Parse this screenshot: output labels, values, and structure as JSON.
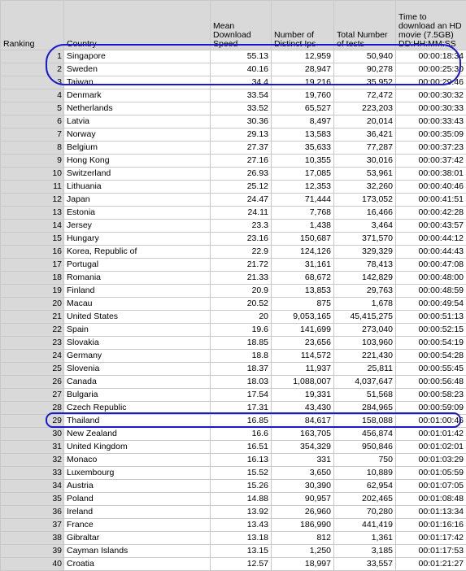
{
  "headers": {
    "ranking": "Ranking",
    "country": "Country",
    "speed": "Mean Download Speed",
    "ips": "Number of Distinct Ips",
    "tests": "Total Number of tests",
    "time": "Time to download an HD movie (7.5GB) DD:HH:MM:SS"
  },
  "rows": [
    {
      "rank": "1",
      "country": "Singapore",
      "speed": "55.13",
      "ips": "12,959",
      "tests": "50,940",
      "time": "00:00:18:34"
    },
    {
      "rank": "2",
      "country": "Sweden",
      "speed": "40.16",
      "ips": "28,947",
      "tests": "90,278",
      "time": "00:00:25:30"
    },
    {
      "rank": "3",
      "country": "Taiwan",
      "speed": "34.4",
      "ips": "19,216",
      "tests": "35,952",
      "time": "00:00:29:46"
    },
    {
      "rank": "4",
      "country": "Denmark",
      "speed": "33.54",
      "ips": "19,760",
      "tests": "72,472",
      "time": "00:00:30:32"
    },
    {
      "rank": "5",
      "country": "Netherlands",
      "speed": "33.52",
      "ips": "65,527",
      "tests": "223,203",
      "time": "00:00:30:33"
    },
    {
      "rank": "6",
      "country": "Latvia",
      "speed": "30.36",
      "ips": "8,497",
      "tests": "20,014",
      "time": "00:00:33:43"
    },
    {
      "rank": "7",
      "country": "Norway",
      "speed": "29.13",
      "ips": "13,583",
      "tests": "36,421",
      "time": "00:00:35:09"
    },
    {
      "rank": "8",
      "country": "Belgium",
      "speed": "27.37",
      "ips": "35,633",
      "tests": "77,287",
      "time": "00:00:37:23"
    },
    {
      "rank": "9",
      "country": "Hong Kong",
      "speed": "27.16",
      "ips": "10,355",
      "tests": "30,016",
      "time": "00:00:37:42"
    },
    {
      "rank": "10",
      "country": "Switzerland",
      "speed": "26.93",
      "ips": "17,085",
      "tests": "53,961",
      "time": "00:00:38:01"
    },
    {
      "rank": "11",
      "country": "Lithuania",
      "speed": "25.12",
      "ips": "12,353",
      "tests": "32,260",
      "time": "00:00:40:46"
    },
    {
      "rank": "12",
      "country": "Japan",
      "speed": "24.47",
      "ips": "71,444",
      "tests": "173,052",
      "time": "00:00:41:51"
    },
    {
      "rank": "13",
      "country": "Estonia",
      "speed": "24.11",
      "ips": "7,768",
      "tests": "16,466",
      "time": "00:00:42:28"
    },
    {
      "rank": "14",
      "country": "Jersey",
      "speed": "23.3",
      "ips": "1,438",
      "tests": "3,464",
      "time": "00:00:43:57"
    },
    {
      "rank": "15",
      "country": "Hungary",
      "speed": "23.16",
      "ips": "150,687",
      "tests": "371,570",
      "time": "00:00:44:12"
    },
    {
      "rank": "16",
      "country": "Korea, Republic of",
      "speed": "22.9",
      "ips": "124,126",
      "tests": "329,329",
      "time": "00:00:44:43"
    },
    {
      "rank": "17",
      "country": "Portugal",
      "speed": "21.72",
      "ips": "31,161",
      "tests": "78,413",
      "time": "00:00:47:08"
    },
    {
      "rank": "18",
      "country": "Romania",
      "speed": "21.33",
      "ips": "68,672",
      "tests": "142,829",
      "time": "00:00:48:00"
    },
    {
      "rank": "19",
      "country": "Finland",
      "speed": "20.9",
      "ips": "13,853",
      "tests": "29,763",
      "time": "00:00:48:59"
    },
    {
      "rank": "20",
      "country": "Macau",
      "speed": "20.52",
      "ips": "875",
      "tests": "1,678",
      "time": "00:00:49:54"
    },
    {
      "rank": "21",
      "country": "United States",
      "speed": "20",
      "ips": "9,053,165",
      "tests": "45,415,275",
      "time": "00:00:51:13"
    },
    {
      "rank": "22",
      "country": "Spain",
      "speed": "19.6",
      "ips": "141,699",
      "tests": "273,040",
      "time": "00:00:52:15"
    },
    {
      "rank": "23",
      "country": "Slovakia",
      "speed": "18.85",
      "ips": "23,656",
      "tests": "103,960",
      "time": "00:00:54:19"
    },
    {
      "rank": "24",
      "country": "Germany",
      "speed": "18.8",
      "ips": "114,572",
      "tests": "221,430",
      "time": "00:00:54:28"
    },
    {
      "rank": "25",
      "country": "Slovenia",
      "speed": "18.37",
      "ips": "11,937",
      "tests": "25,811",
      "time": "00:00:55:45"
    },
    {
      "rank": "26",
      "country": "Canada",
      "speed": "18.03",
      "ips": "1,088,007",
      "tests": "4,037,647",
      "time": "00:00:56:48"
    },
    {
      "rank": "27",
      "country": "Bulgaria",
      "speed": "17.54",
      "ips": "19,331",
      "tests": "51,568",
      "time": "00:00:58:23"
    },
    {
      "rank": "28",
      "country": "Czech Republic",
      "speed": "17.31",
      "ips": "43,430",
      "tests": "284,965",
      "time": "00:00:59:09"
    },
    {
      "rank": "29",
      "country": "Thailand",
      "speed": "16.85",
      "ips": "84,617",
      "tests": "158,088",
      "time": "00:01:00:46"
    },
    {
      "rank": "30",
      "country": "New Zealand",
      "speed": "16.6",
      "ips": "163,705",
      "tests": "456,874",
      "time": "00:01:01:42"
    },
    {
      "rank": "31",
      "country": "United Kingdom",
      "speed": "16.51",
      "ips": "354,329",
      "tests": "950,846",
      "time": "00:01:02:01"
    },
    {
      "rank": "32",
      "country": "Monaco",
      "speed": "16.13",
      "ips": "331",
      "tests": "750",
      "time": "00:01:03:29"
    },
    {
      "rank": "33",
      "country": "Luxembourg",
      "speed": "15.52",
      "ips": "3,650",
      "tests": "10,889",
      "time": "00:01:05:59"
    },
    {
      "rank": "34",
      "country": "Austria",
      "speed": "15.26",
      "ips": "30,390",
      "tests": "62,954",
      "time": "00:01:07:05"
    },
    {
      "rank": "35",
      "country": "Poland",
      "speed": "14.88",
      "ips": "90,957",
      "tests": "202,465",
      "time": "00:01:08:48"
    },
    {
      "rank": "36",
      "country": "Ireland",
      "speed": "13.92",
      "ips": "26,960",
      "tests": "70,280",
      "time": "00:01:13:34"
    },
    {
      "rank": "37",
      "country": "France",
      "speed": "13.43",
      "ips": "186,990",
      "tests": "441,419",
      "time": "00:01:16:16"
    },
    {
      "rank": "38",
      "country": "Gibraltar",
      "speed": "13.18",
      "ips": "812",
      "tests": "1,361",
      "time": "00:01:17:42"
    },
    {
      "rank": "39",
      "country": "Cayman Islands",
      "speed": "13.15",
      "ips": "1,250",
      "tests": "3,185",
      "time": "00:01:17:53"
    },
    {
      "rank": "40",
      "country": "Croatia",
      "speed": "12.57",
      "ips": "18,997",
      "tests": "33,557",
      "time": "00:01:21:27"
    }
  ],
  "colors": {
    "header_bg": "#d9d9d9",
    "grid": "#c8c8c8",
    "highlight": "#1a1acc"
  },
  "highlighted_ranks": [
    "1",
    "2",
    "3",
    "29"
  ]
}
